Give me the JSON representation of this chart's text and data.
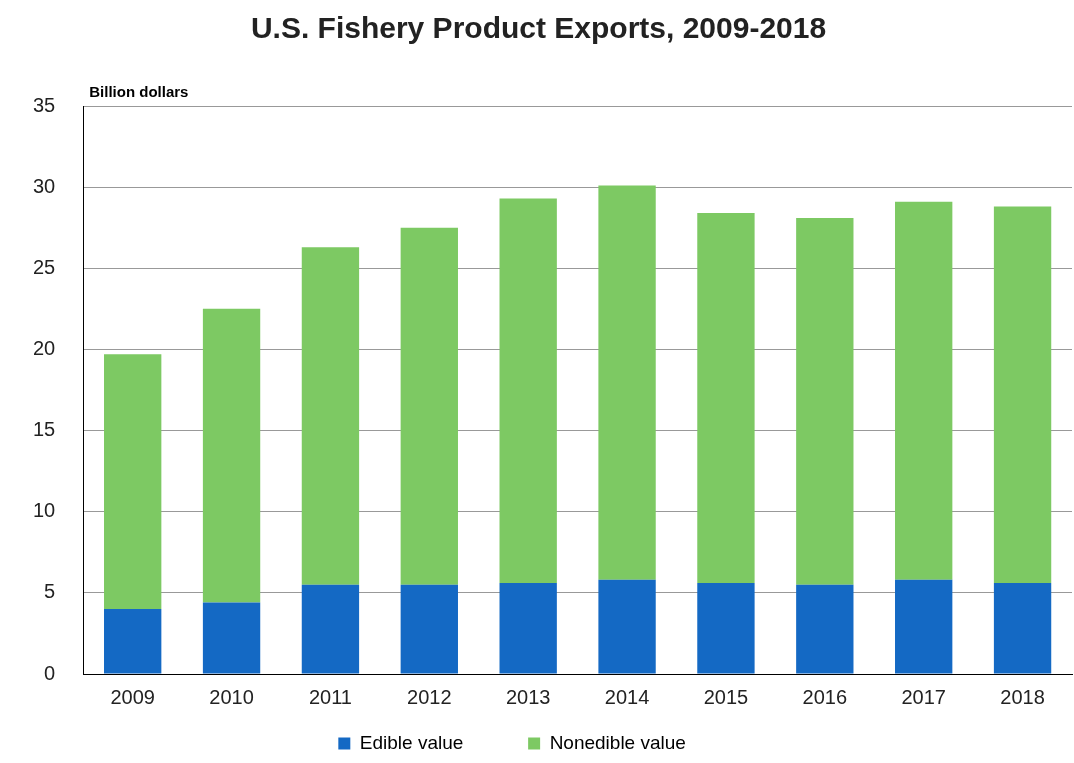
{
  "chart_data": {
    "type": "bar",
    "title": "U.S. Fishery Product Exports, 2009-2018",
    "ylabel": "Billion dollars",
    "categories": [
      "2009",
      "2010",
      "2011",
      "2012",
      "2013",
      "2014",
      "2015",
      "2016",
      "2017",
      "2018"
    ],
    "series": [
      {
        "name": "Edible value",
        "color": "#1469c4",
        "values": [
          4.0,
          4.4,
          5.5,
          5.5,
          5.6,
          5.8,
          5.6,
          5.5,
          5.8,
          5.6
        ]
      },
      {
        "name": "Nonedible value",
        "color": "#7dc963",
        "values": [
          15.7,
          18.1,
          20.8,
          22.0,
          23.7,
          24.3,
          22.8,
          22.6,
          23.3,
          23.2
        ]
      }
    ],
    "stacked": true,
    "ylim": [
      0,
      35
    ],
    "yticks": [
      0,
      5,
      10,
      15,
      20,
      25,
      30,
      35
    ],
    "grid": "y",
    "legend": "bottom"
  }
}
